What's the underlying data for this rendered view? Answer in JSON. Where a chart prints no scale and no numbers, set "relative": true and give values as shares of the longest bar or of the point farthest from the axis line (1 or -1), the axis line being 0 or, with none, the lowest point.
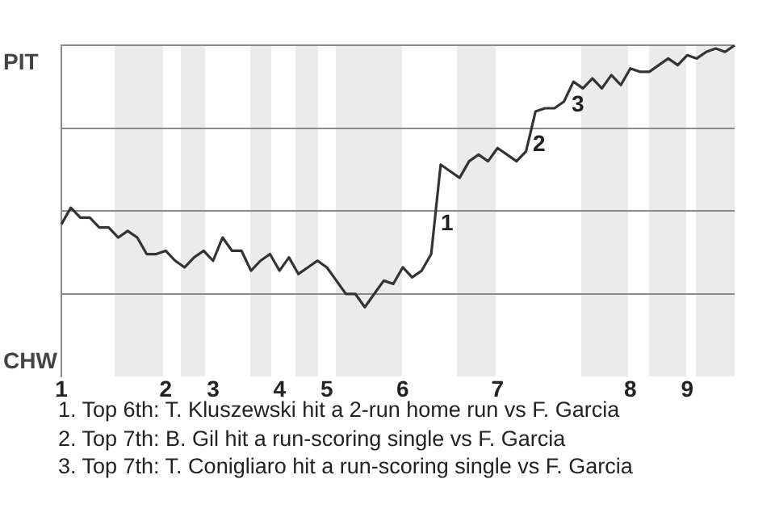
{
  "chart_data": {
    "type": "line",
    "relative": true,
    "grid": "y",
    "legend": false,
    "marker": "none",
    "line_style": "solid",
    "categories": [
      "1",
      null,
      null,
      null,
      null,
      null,
      null,
      null,
      null,
      null,
      null,
      "2",
      null,
      null,
      null,
      null,
      "3",
      null,
      null,
      null,
      null,
      null,
      null,
      "4",
      null,
      null,
      null,
      null,
      "5",
      null,
      null,
      null,
      null,
      null,
      null,
      null,
      "6",
      null,
      null,
      null,
      null,
      null,
      null,
      null,
      null,
      null,
      "7",
      null,
      null,
      null,
      null,
      null,
      null,
      null,
      null,
      null,
      null,
      null,
      null,
      null,
      "8",
      null,
      null,
      null,
      null,
      null,
      "9",
      null,
      null,
      null,
      null,
      null
    ],
    "series": [
      {
        "color": "#333333",
        "values": [
          0.46,
          0.51,
          0.48,
          0.48,
          0.45,
          0.45,
          0.42,
          0.44,
          0.42,
          0.37,
          0.37,
          0.38,
          0.35,
          0.33,
          0.36,
          0.38,
          0.35,
          0.42,
          0.38,
          0.38,
          0.32,
          0.35,
          0.37,
          0.32,
          0.36,
          0.31,
          0.33,
          0.35,
          0.33,
          0.29,
          0.25,
          0.25,
          0.21,
          0.25,
          0.29,
          0.28,
          0.33,
          0.3,
          0.32,
          0.37,
          0.64,
          0.62,
          0.6,
          0.65,
          0.67,
          0.65,
          0.69,
          0.67,
          0.65,
          0.68,
          0.8,
          0.81,
          0.81,
          0.83,
          0.89,
          0.87,
          0.9,
          0.87,
          0.91,
          0.88,
          0.93,
          0.92,
          0.92,
          0.94,
          0.96,
          0.94,
          0.97,
          0.96,
          0.98,
          0.99,
          0.98,
          1
        ]
      }
    ],
    "annotations": [
      "PIT",
      "CHW",
      "1",
      "2",
      "3",
      "1. Top 6th: T. Kluszewski hit a 2-run home run vs F. Garcia",
      "2. Top 7th: B. Gil hit a run-scoring single vs F. Garcia",
      "3. Top 7th: T. Conigliaro hit a run-scoring single vs F. Garcia"
    ]
  }
}
